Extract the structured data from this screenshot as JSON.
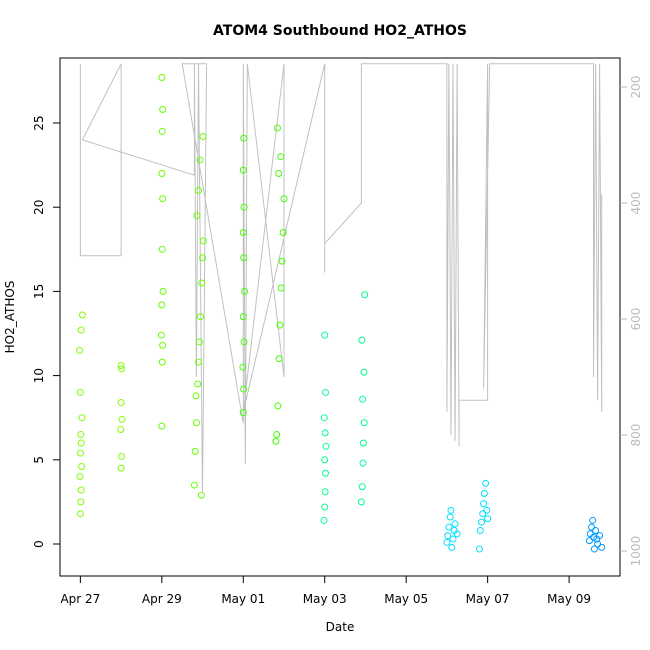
{
  "chart_data": {
    "type": "scatter",
    "title": "ATOM4 Southbound HO2_ATHOS",
    "x_label": "Date",
    "y_label": "HO2_ATHOS",
    "xlim": [
      26.5,
      40.25
    ],
    "xticks": [
      {
        "value": 27,
        "label": "Apr 27"
      },
      {
        "value": 29,
        "label": "Apr 29"
      },
      {
        "value": 31,
        "label": "May 01"
      },
      {
        "value": 33,
        "label": "May 03"
      },
      {
        "value": 35,
        "label": "May 05"
      },
      {
        "value": 37,
        "label": "May 07"
      },
      {
        "value": 39,
        "label": "May 09"
      }
    ],
    "ylim": [
      -1.9,
      28.86
    ],
    "yticks": [
      0,
      5,
      10,
      15,
      20,
      25
    ],
    "y2lim": [
      1043,
      150
    ],
    "y2ticks": [
      200,
      400,
      600,
      800,
      1000
    ],
    "y2_color": "#bbbbbb",
    "series": [
      {
        "color": "#80ff00",
        "x": [
          27.0,
          27.01,
          27.02,
          26.99,
          27.03,
          27.0,
          27.02,
          27.01,
          27.04,
          27.0,
          26.98,
          27.02,
          27.05,
          28.0,
          28.01,
          27.99,
          28.02,
          28.0,
          28.01,
          28.0
        ],
        "values": [
          1.8,
          2.5,
          3.2,
          4.0,
          4.6,
          5.4,
          6.0,
          6.5,
          7.5,
          9.0,
          11.5,
          12.7,
          13.6,
          4.5,
          5.2,
          6.8,
          7.4,
          8.4,
          10.4,
          10.6
        ]
      },
      {
        "color": "#66ff00",
        "x": [
          29.0,
          29.01,
          29.02,
          28.99,
          29.0,
          29.03,
          29.01,
          29.02,
          29.0,
          29.01,
          29.02,
          29.0,
          29.8,
          29.82,
          29.85,
          29.88,
          29.9,
          29.92,
          29.95,
          29.98,
          30.0,
          30.02,
          29.86,
          29.9,
          29.94,
          29.84,
          30.01,
          29.97
        ],
        "values": [
          7.0,
          10.8,
          11.8,
          12.4,
          14.2,
          15.0,
          17.5,
          20.5,
          22.0,
          24.5,
          25.8,
          27.7,
          3.5,
          5.5,
          7.2,
          9.5,
          10.8,
          12.0,
          13.5,
          15.5,
          17.0,
          18.0,
          19.5,
          21.0,
          22.8,
          8.8,
          24.2,
          2.9
        ]
      },
      {
        "color": "#40ff00",
        "x": [
          31.0,
          31.01,
          30.99,
          31.02,
          31.0,
          31.03,
          31.01,
          31.0,
          31.02,
          31.0,
          31.01,
          31.8,
          31.82,
          31.85,
          31.88,
          31.9,
          31.93,
          31.95,
          31.98,
          32.0,
          31.87,
          31.92,
          31.84
        ],
        "values": [
          7.8,
          9.2,
          10.5,
          12.0,
          13.5,
          15.0,
          17.0,
          18.5,
          20.0,
          22.2,
          24.1,
          6.1,
          6.5,
          8.2,
          11.0,
          13.0,
          15.2,
          16.8,
          18.5,
          20.5,
          22.0,
          23.0,
          24.7
        ]
      },
      {
        "color": "#00ff90",
        "x": [
          32.98,
          33.0,
          33.01,
          33.02,
          33.0,
          33.03,
          33.01,
          32.99,
          33.02,
          33.0,
          33.9,
          33.92,
          33.94,
          33.95,
          33.97,
          33.93,
          33.96,
          33.91,
          33.98
        ],
        "values": [
          1.4,
          2.2,
          3.1,
          4.2,
          5.0,
          5.8,
          6.6,
          7.5,
          9.0,
          12.4,
          2.5,
          3.4,
          4.8,
          6.0,
          7.2,
          8.6,
          10.2,
          12.1,
          14.8
        ]
      },
      {
        "color": "#00e0ff",
        "x": [
          36.0,
          36.02,
          36.05,
          36.08,
          36.1,
          36.12,
          36.15,
          36.18,
          36.2,
          36.25,
          36.8,
          36.82,
          36.85,
          36.88,
          36.9,
          36.92,
          36.95,
          36.98,
          37.0
        ],
        "values": [
          0.1,
          0.5,
          1.0,
          1.6,
          2.0,
          -0.2,
          0.3,
          0.8,
          1.2,
          0.6,
          -0.3,
          0.8,
          1.3,
          1.8,
          2.4,
          3.0,
          3.6,
          2.0,
          1.5
        ]
      },
      {
        "color": "#0099ff",
        "x": [
          39.5,
          39.52,
          39.55,
          39.58,
          39.6,
          39.62,
          39.65,
          39.68,
          39.7,
          39.75,
          39.8
        ],
        "values": [
          0.2,
          0.6,
          1.0,
          1.4,
          0.4,
          -0.3,
          0.8,
          0.3,
          0.0,
          0.5,
          -0.2
        ]
      }
    ],
    "line": {
      "color": "#c0c0c0",
      "axis": "y2",
      "x": [
        27.0,
        27.0,
        28.0,
        28.0,
        27.05,
        29.8,
        29.8,
        29.85,
        29.9,
        30.0,
        30.1,
        29.5,
        31.0,
        31.0,
        31.05,
        31.1,
        32.0,
        32.0,
        31.0,
        33.0,
        33.0,
        33.0,
        33.9,
        33.9,
        33.95,
        34.0,
        36.0,
        36.0,
        36.05,
        36.1,
        36.15,
        36.2,
        36.25,
        36.3,
        36.3,
        37.0,
        37.0,
        36.9,
        37.05,
        39.6,
        39.6,
        39.65,
        39.7,
        39.75,
        39.8,
        39.8
      ],
      "values": [
        160,
        491,
        491,
        160,
        291,
        352,
        160,
        700,
        160,
        900,
        160,
        160,
        780,
        160,
        850,
        160,
        700,
        160,
        760,
        160,
        520,
        470,
        400,
        160,
        160,
        160,
        160,
        760,
        160,
        800,
        160,
        810,
        160,
        820,
        740,
        740,
        160,
        720,
        160,
        160,
        700,
        160,
        740,
        160,
        760,
        385
      ]
    }
  }
}
